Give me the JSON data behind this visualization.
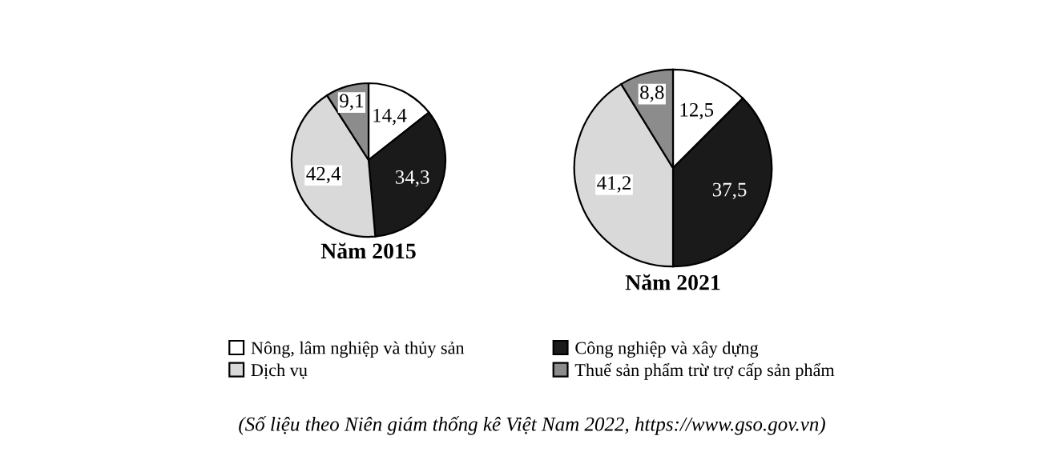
{
  "chart_data": [
    {
      "type": "pie",
      "title": "Năm 2015",
      "categories": [
        "Nông, lâm nghiệp và thủy sản",
        "Công nghiệp và xây dựng",
        "Dịch vụ",
        "Thuế sản phẩm trừ trợ cấp sản phẩm"
      ],
      "values": [
        14.4,
        34.3,
        42.4,
        9.1
      ],
      "value_labels": [
        "14,4",
        "34,3",
        "42,4",
        "9,1"
      ],
      "colors": [
        "#ffffff",
        "#1a1a1a",
        "#d9d9d9",
        "#8c8c8c"
      ],
      "legend": "bottom",
      "annotations": [
        "(Số liệu theo Niên giám thống kê Việt Nam 2022, https://www.gso.gov.vn)"
      ]
    },
    {
      "type": "pie",
      "title": "Năm 2021",
      "categories": [
        null,
        null,
        null,
        null
      ],
      "values": [
        12.5,
        37.5,
        41.2,
        8.8
      ],
      "value_labels": [
        "12,5",
        "37,5",
        "41,2",
        "8,8"
      ],
      "colors": [
        "#ffffff",
        "#1a1a1a",
        "#d9d9d9",
        "#8c8c8c"
      ]
    }
  ]
}
